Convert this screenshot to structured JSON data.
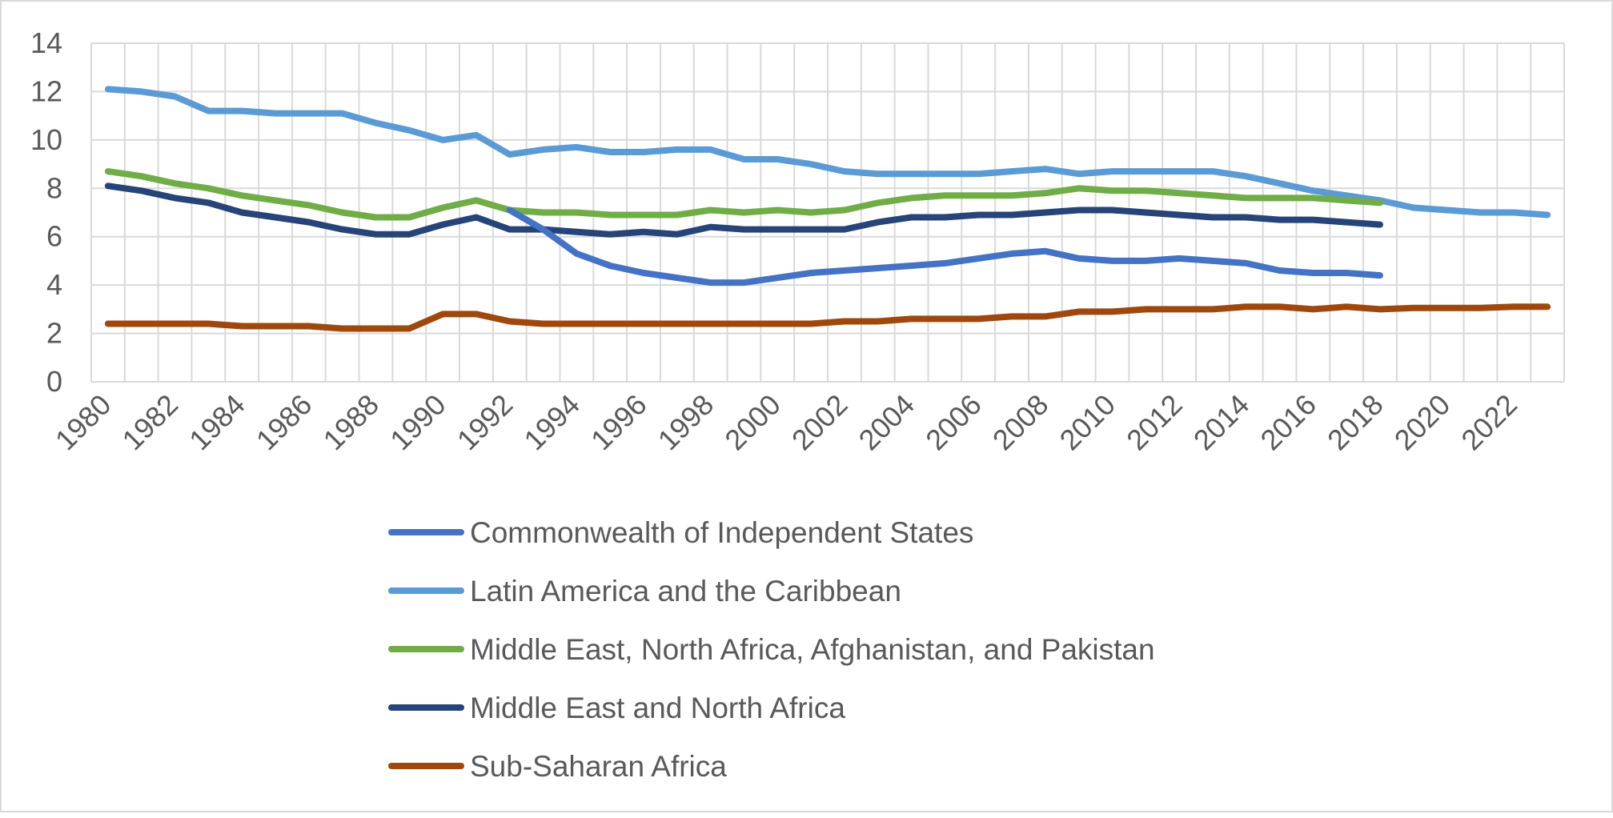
{
  "chart_data": {
    "type": "line",
    "title": "",
    "xlabel": "",
    "ylabel": "",
    "ylim": [
      0,
      14
    ],
    "yticks": [
      0,
      2,
      4,
      6,
      8,
      10,
      12,
      14
    ],
    "xlim": [
      1980,
      2023
    ],
    "xticks": [
      "1980",
      "1982",
      "1984",
      "1986",
      "1988",
      "1990",
      "1992",
      "1994",
      "1996",
      "1998",
      "2000",
      "2002",
      "2004",
      "2006",
      "2008",
      "2010",
      "2012",
      "2014",
      "2016",
      "2018",
      "2020",
      "2022"
    ],
    "grid": true,
    "legend_position": "bottom",
    "x": [
      1980,
      1981,
      1982,
      1983,
      1984,
      1985,
      1986,
      1987,
      1988,
      1989,
      1990,
      1991,
      1992,
      1993,
      1994,
      1995,
      1996,
      1997,
      1998,
      1999,
      2000,
      2001,
      2002,
      2003,
      2004,
      2005,
      2006,
      2007,
      2008,
      2009,
      2010,
      2011,
      2012,
      2013,
      2014,
      2015,
      2016,
      2017,
      2018,
      2019,
      2020,
      2021,
      2022,
      2023
    ],
    "series": [
      {
        "name": "Latin America and the Caribbean",
        "color": "#5b9bd5",
        "values": [
          12.1,
          12.0,
          11.8,
          11.2,
          11.2,
          11.1,
          11.1,
          11.1,
          10.7,
          10.4,
          10.0,
          10.2,
          9.4,
          9.6,
          9.7,
          9.5,
          9.5,
          9.6,
          9.6,
          9.2,
          9.2,
          9.0,
          8.7,
          8.6,
          8.6,
          8.6,
          8.6,
          8.7,
          8.8,
          8.6,
          8.7,
          8.7,
          8.7,
          8.7,
          8.5,
          8.2,
          7.9,
          7.7,
          7.5,
          7.2,
          7.1,
          7.0,
          7.0,
          6.9
        ]
      },
      {
        "name": "Middle East, North Africa, Afghanistan, and Pakistan",
        "color": "#70ad47",
        "values": [
          8.7,
          8.5,
          8.2,
          8.0,
          7.7,
          7.5,
          7.3,
          7.0,
          6.8,
          6.8,
          7.2,
          7.5,
          7.1,
          7.0,
          7.0,
          6.9,
          6.9,
          6.9,
          7.1,
          7.0,
          7.1,
          7.0,
          7.1,
          7.4,
          7.6,
          7.7,
          7.7,
          7.7,
          7.8,
          8.0,
          7.9,
          7.9,
          7.8,
          7.7,
          7.6,
          7.6,
          7.6,
          7.5,
          7.4,
          null,
          null,
          null,
          null,
          null
        ]
      },
      {
        "name": "Middle East and North Africa",
        "color": "#264478",
        "values": [
          8.1,
          7.9,
          7.6,
          7.4,
          7.0,
          6.8,
          6.6,
          6.3,
          6.1,
          6.1,
          6.5,
          6.8,
          6.3,
          6.3,
          6.2,
          6.1,
          6.2,
          6.1,
          6.4,
          6.3,
          6.3,
          6.3,
          6.3,
          6.6,
          6.8,
          6.8,
          6.9,
          6.9,
          7.0,
          7.1,
          7.1,
          7.0,
          6.9,
          6.8,
          6.8,
          6.7,
          6.7,
          6.6,
          6.5,
          null,
          null,
          null,
          null,
          null
        ]
      },
      {
        "name": "Commonwealth of Independent States",
        "color": "#4472c4",
        "values": [
          null,
          null,
          null,
          null,
          null,
          null,
          null,
          null,
          null,
          null,
          null,
          null,
          7.1,
          6.3,
          5.3,
          4.8,
          4.5,
          4.3,
          4.1,
          4.1,
          4.3,
          4.5,
          4.6,
          4.7,
          4.8,
          4.9,
          5.1,
          5.3,
          5.4,
          5.1,
          5.0,
          5.0,
          5.1,
          5.0,
          4.9,
          4.6,
          4.5,
          4.5,
          4.4,
          null,
          null,
          null,
          null,
          null
        ]
      },
      {
        "name": "Sub-Saharan Africa",
        "color": "#9e480e",
        "values": [
          2.4,
          2.4,
          2.4,
          2.4,
          2.3,
          2.3,
          2.3,
          2.2,
          2.2,
          2.2,
          2.8,
          2.8,
          2.5,
          2.4,
          2.4,
          2.4,
          2.4,
          2.4,
          2.4,
          2.4,
          2.4,
          2.4,
          2.5,
          2.5,
          2.6,
          2.6,
          2.6,
          2.7,
          2.7,
          2.9,
          2.9,
          3.0,
          3.0,
          3.0,
          3.1,
          3.1,
          3.0,
          3.1,
          3.0,
          3.05,
          3.05,
          3.05,
          3.1,
          3.1
        ]
      }
    ],
    "legend": [
      {
        "name": "Commonwealth of Independent States",
        "color": "#4472c4"
      },
      {
        "name": "Latin America and the Caribbean",
        "color": "#5b9bd5"
      },
      {
        "name": "Middle East, North Africa, Afghanistan, and Pakistan",
        "color": "#70ad47"
      },
      {
        "name": "Middle East and North Africa",
        "color": "#264478"
      },
      {
        "name": "Sub-Saharan Africa",
        "color": "#9e480e"
      }
    ]
  }
}
